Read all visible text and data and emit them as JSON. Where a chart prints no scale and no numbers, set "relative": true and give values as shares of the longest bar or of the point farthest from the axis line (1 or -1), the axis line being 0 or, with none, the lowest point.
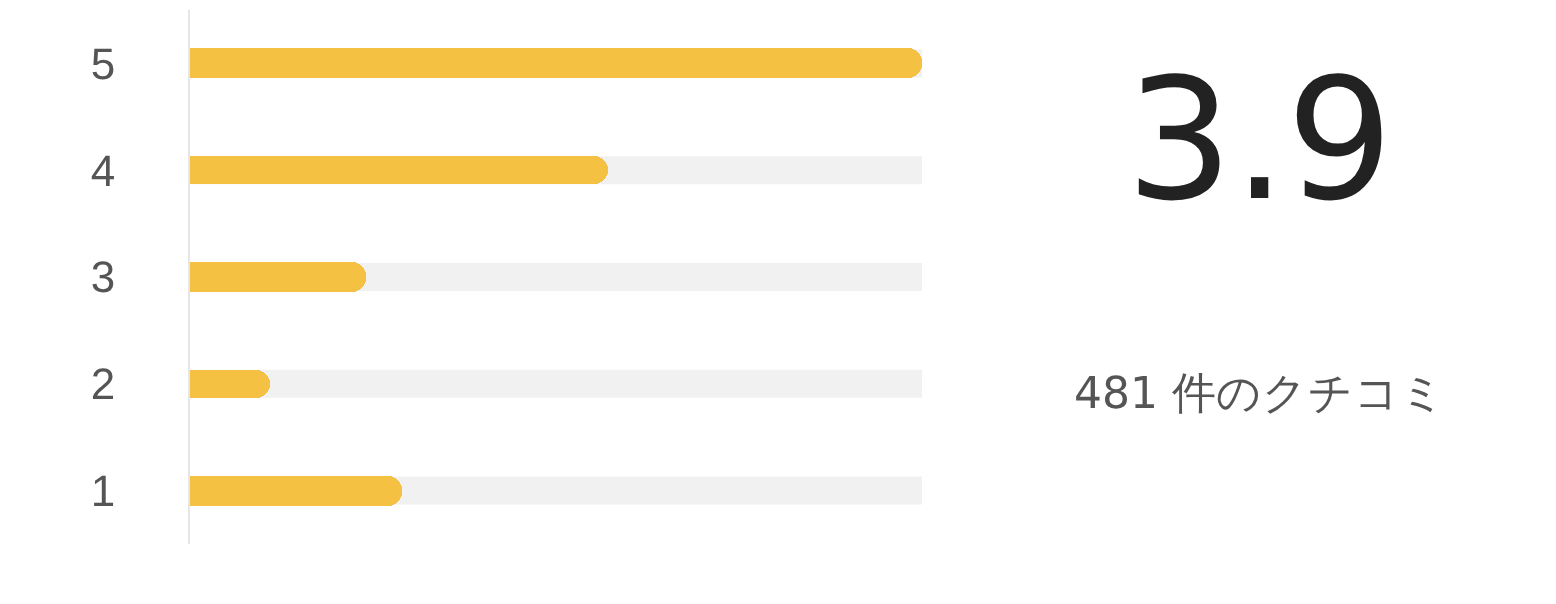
{
  "chart_data": {
    "type": "bar",
    "orientation": "horizontal",
    "relative": true,
    "categories": [
      "5",
      "4",
      "3",
      "2",
      "1"
    ],
    "values": [
      1,
      0.57,
      0.24,
      0.11,
      0.29
    ],
    "color": "#f4c142",
    "annotations": [
      "3.9",
      "481 件のクチコミ"
    ]
  }
}
